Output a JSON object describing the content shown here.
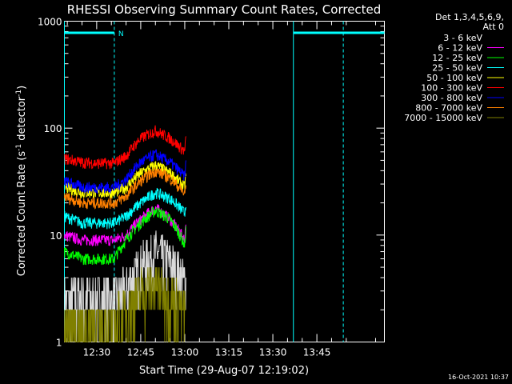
{
  "chart_data": {
    "type": "line",
    "title": "RHESSI Observing Summary Count Rates, Corrected",
    "xlabel": "Start Time (29-Aug-07 12:19:02)",
    "ylabel_main": "Corrected Count Rate (s",
    "ylabel_sup1": "-1",
    "ylabel_mid": " detector",
    "ylabel_sup2": "-1",
    "ylabel_end": ")",
    "yscale": "log",
    "ylim": [
      1,
      1000
    ],
    "xlim_minutes": [
      19,
      128
    ],
    "x_ticks": [
      {
        "label": "12:30",
        "minute": 30
      },
      {
        "label": "12:45",
        "minute": 45
      },
      {
        "label": "13:00",
        "minute": 60
      },
      {
        "label": "13:15",
        "minute": 75
      },
      {
        "label": "13:30",
        "minute": 90
      },
      {
        "label": "13:45",
        "minute": 105
      }
    ],
    "y_ticks": [
      {
        "label": "1",
        "value": 1
      },
      {
        "label": "10",
        "value": 10
      },
      {
        "label": "100",
        "value": 100
      },
      {
        "label": "1000",
        "value": 1000
      }
    ],
    "legend_header": [
      "Det 1,3,4,5,6,9,",
      "Att 0"
    ],
    "legend_placement": "right",
    "series": [
      {
        "name": "3 - 6 keV",
        "color": "#000000",
        "x": [
          19,
          25,
          30,
          36,
          40,
          45,
          50,
          55,
          60,
          60.5
        ],
        "y": [
          2.5,
          2.5,
          2.5,
          2.5,
          3,
          5,
          7,
          5.5,
          3.5,
          3.5
        ]
      },
      {
        "name": "6 - 12 keV",
        "color": "#ff00ff",
        "x": [
          19,
          25,
          30,
          36,
          40,
          45,
          50,
          55,
          60,
          60.5
        ],
        "y": [
          10,
          9,
          9,
          9,
          10,
          14,
          18,
          14,
          9,
          15
        ]
      },
      {
        "name": "12 - 25 keV",
        "color": "#00ff00",
        "x": [
          19,
          25,
          30,
          36,
          40,
          45,
          50,
          55,
          60,
          60.5
        ],
        "y": [
          7,
          6,
          6,
          6,
          9,
          13,
          17,
          14,
          8,
          12
        ]
      },
      {
        "name": "25 - 50 keV",
        "color": "#00ffff",
        "x": [
          19,
          25,
          30,
          36,
          40,
          45,
          50,
          55,
          60,
          60.5
        ],
        "y": [
          15,
          13,
          13,
          13,
          15,
          20,
          25,
          22,
          16,
          22
        ]
      },
      {
        "name": "50 - 100 keV",
        "color": "#ffff00",
        "x": [
          19,
          25,
          30,
          36,
          40,
          45,
          50,
          55,
          60,
          60.5
        ],
        "y": [
          28,
          25,
          25,
          25,
          28,
          38,
          45,
          38,
          28,
          40
        ]
      },
      {
        "name": "100 - 300 keV",
        "color": "#ff0000",
        "x": [
          19,
          25,
          30,
          36,
          40,
          45,
          50,
          55,
          60,
          60.5
        ],
        "y": [
          52,
          48,
          47,
          47,
          55,
          80,
          95,
          80,
          60,
          85
        ]
      },
      {
        "name": "300 - 800 keV",
        "color": "#0000ff",
        "x": [
          19,
          25,
          30,
          36,
          40,
          45,
          50,
          55,
          60,
          60.5
        ],
        "y": [
          32,
          28,
          28,
          28,
          33,
          48,
          57,
          48,
          35,
          50
        ]
      },
      {
        "name": "800 - 7000 keV",
        "color": "#ff8000",
        "x": [
          19,
          25,
          30,
          36,
          40,
          45,
          50,
          55,
          60,
          60.5
        ],
        "y": [
          23,
          20,
          20,
          20,
          23,
          32,
          40,
          34,
          24,
          30
        ]
      },
      {
        "name": "7000 - 15000 keV",
        "color": "#808000",
        "x": [
          19,
          25,
          30,
          36,
          40,
          45,
          50,
          55,
          60,
          60.5
        ],
        "y": [
          1.5,
          1.5,
          1.5,
          1.5,
          2,
          3,
          3.5,
          2.8,
          1.8,
          1.8
        ]
      }
    ],
    "intervals": [
      {
        "label": "N",
        "start": 19,
        "end": 36
      },
      {
        "label": "",
        "start": 97,
        "end": 128
      }
    ],
    "vertical_lines": [
      19,
      36,
      97,
      114
    ]
  },
  "footer": {
    "timestamp": "16-Oct-2021 10:37"
  }
}
